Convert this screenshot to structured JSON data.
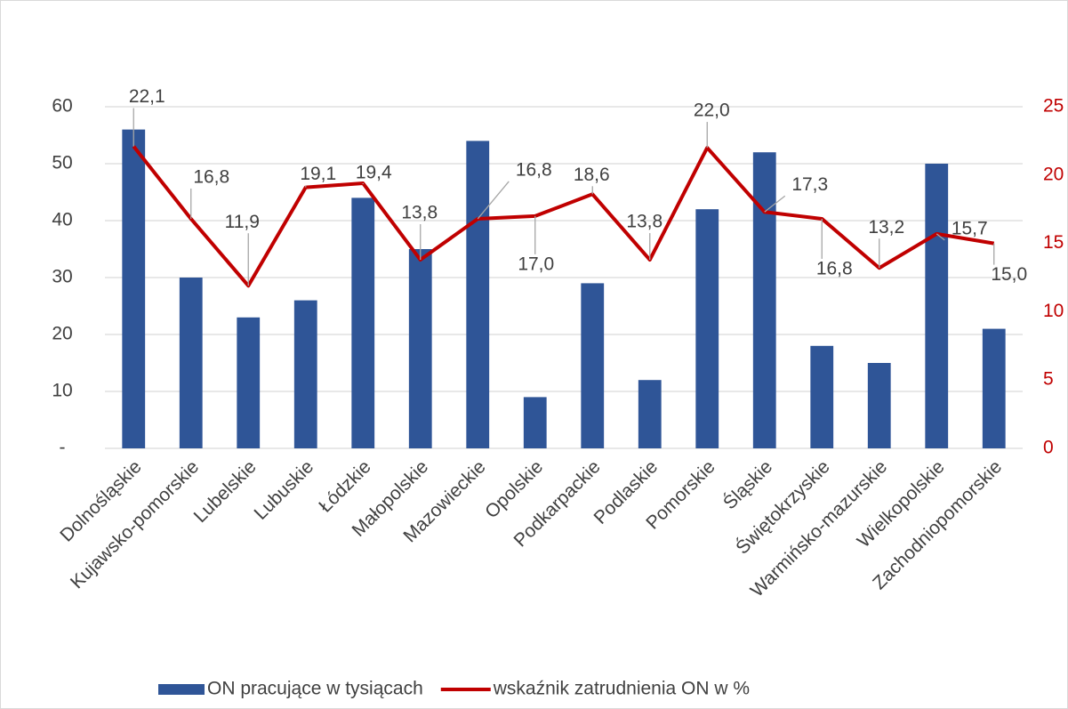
{
  "chart_data": {
    "type": "bar-line",
    "categories": [
      "Dolnośląskie",
      "Kujawsko-pomorskie",
      "Lubelskie",
      "Lubuskie",
      "Łódzkie",
      "Małopolskie",
      "Mazowieckie",
      "Opolskie",
      "Podkarpackie",
      "Podlaskie",
      "Pomorskie",
      "Śląskie",
      "Świętokrzyskie",
      "Warmińsko-mazurskie",
      "Wielkopolskie",
      "Zachodniopomorskie"
    ],
    "series": [
      {
        "name": "ON pracujące w tysiącach",
        "type": "bar",
        "color": "#2f5597",
        "values": [
          56,
          30,
          23,
          26,
          44,
          35,
          54,
          9,
          29,
          12,
          42,
          52,
          18,
          15,
          50,
          21
        ]
      },
      {
        "name": "wskaźnik zatrudnienia ON w %",
        "type": "line",
        "axis": "y2",
        "color": "#c00000",
        "values": [
          22.1,
          16.8,
          11.9,
          19.1,
          19.4,
          13.8,
          16.8,
          17.0,
          18.6,
          13.8,
          22.0,
          17.3,
          16.8,
          13.2,
          15.7,
          15.0
        ],
        "value_labels": [
          "22,1",
          "16,8",
          "11,9",
          "19,1",
          "19,4",
          "13,8",
          "16,8",
          "17,0",
          "18,6",
          "13,8",
          "22,0",
          "17,3",
          "16,8",
          "13,2",
          "15,7",
          "15,0"
        ]
      }
    ],
    "ylim": [
      0,
      60
    ],
    "yticks": [
      {
        "value": 0,
        "label": "-"
      },
      10,
      20,
      30,
      40,
      50,
      60
    ],
    "y2lim": [
      0,
      25
    ],
    "y2ticks": [
      0,
      5,
      10,
      15,
      20,
      25
    ],
    "grid": true,
    "legend": "bottom"
  }
}
